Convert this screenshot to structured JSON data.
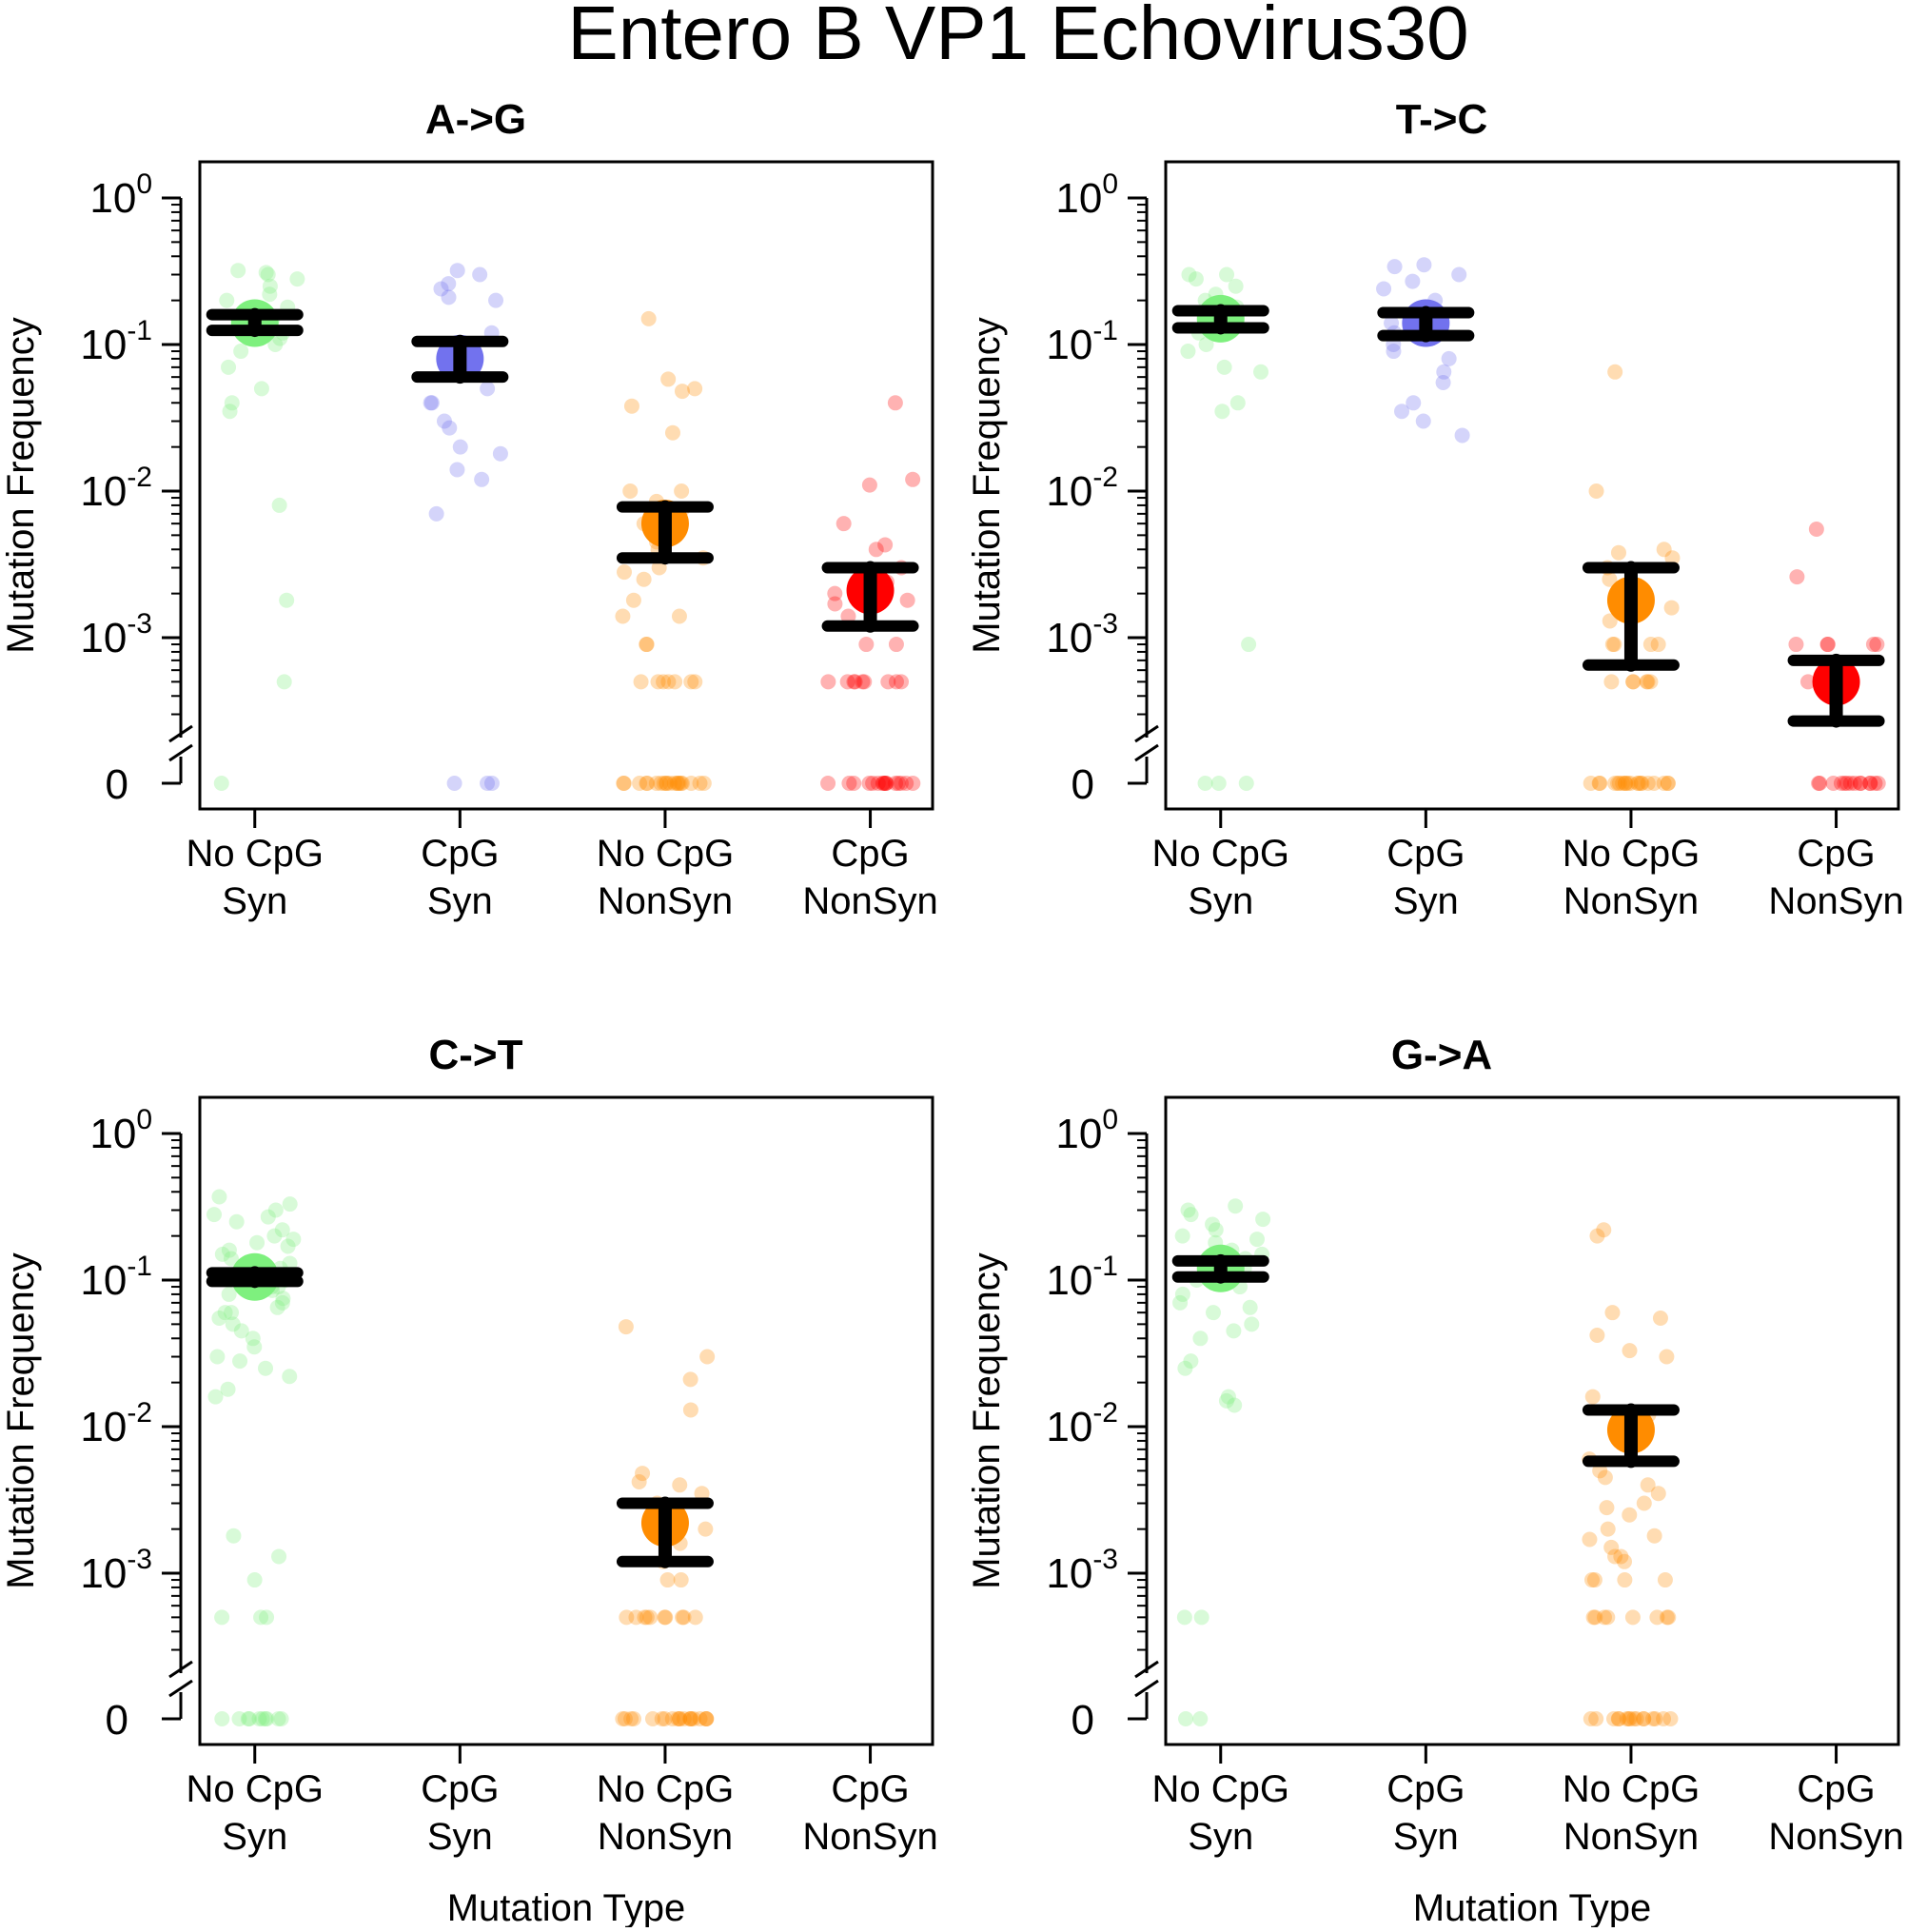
{
  "title": "Entero B VP1 Echovirus30",
  "chart_data": {
    "type": "scatter",
    "y_scale": "log10 with zero break",
    "ylim": [
      0.0003,
      1
    ],
    "y_ticks": [
      {
        "base": "10",
        "exp": "0",
        "value": 1
      },
      {
        "base": "10",
        "exp": "-1",
        "value": 0.1
      },
      {
        "base": "10",
        "exp": "-2",
        "value": 0.01
      },
      {
        "base": "10",
        "exp": "-3",
        "value": 0.001
      }
    ],
    "zero_label": "0",
    "categories": [
      {
        "line1": "No CpG",
        "line2": "Syn"
      },
      {
        "line1": "CpG",
        "line2": "Syn"
      },
      {
        "line1": "No CpG",
        "line2": "NonSyn"
      },
      {
        "line1": "CpG",
        "line2": "NonSyn"
      }
    ],
    "colors": {
      "No CpG Syn": "#7ef07e",
      "CpG Syn": "#7272ee",
      "No CpG NonSyn": "#ff8c00",
      "CpG NonSyn": "#ff0000"
    },
    "panels": [
      {
        "title": "A->G",
        "ylabel": "Mutation Frequency",
        "xlabel": "",
        "series": [
          {
            "category": "No CpG Syn",
            "mean": 0.14,
            "ci": [
              0.125,
              0.16
            ],
            "points": [
              0.3,
              0.32,
              0.31,
              0.28,
              0.25,
              0.22,
              0.2,
              0.18,
              0.15,
              0.12,
              0.1,
              0.09,
              0.11,
              0.07,
              0.05,
              0.04,
              0.035,
              0.008,
              0.0018,
              0.0005,
              0
            ]
          },
          {
            "category": "CpG Syn",
            "mean": 0.08,
            "ci": [
              0.06,
              0.105
            ],
            "points": [
              0.32,
              0.3,
              0.26,
              0.24,
              0.21,
              0.2,
              0.12,
              0.09,
              0.07,
              0.05,
              0.04,
              0.04,
              0.03,
              0.027,
              0.02,
              0.018,
              0.014,
              0.012,
              0.007,
              0,
              0,
              0
            ]
          },
          {
            "category": "No CpG NonSyn",
            "mean": 0.006,
            "ci": [
              0.0035,
              0.0078
            ],
            "points": [
              0.15,
              0.058,
              0.05,
              0.048,
              0.038,
              0.025,
              0.01,
              0.01,
              0.0085,
              0.0075,
              0.006,
              0.005,
              0.0045,
              0.004,
              0.0035,
              0.003,
              0.0028,
              0.0025,
              0.0018,
              0.0014,
              0.0014,
              0.0009,
              0.0009,
              0.0005,
              0.0005,
              0.0005,
              0.0005,
              0.0005,
              0.0005,
              0.0005,
              0,
              0,
              0,
              0,
              0,
              0,
              0,
              0,
              0,
              0,
              0,
              0,
              0,
              0,
              0,
              0,
              0,
              0,
              0,
              0
            ]
          },
          {
            "category": "CpG NonSyn",
            "mean": 0.0021,
            "ci": [
              0.0012,
              0.003
            ],
            "points": [
              0.04,
              0.012,
              0.011,
              0.006,
              0.004,
              0.0043,
              0.003,
              0.0025,
              0.0024,
              0.002,
              0.0018,
              0.0017,
              0.0014,
              0.0009,
              0.0009,
              0.0005,
              0.0005,
              0.0005,
              0.0005,
              0.0005,
              0.0005,
              0.0005,
              0.0005,
              0.0005,
              0,
              0,
              0,
              0,
              0,
              0,
              0,
              0,
              0,
              0,
              0,
              0,
              0,
              0,
              0,
              0
            ]
          }
        ]
      },
      {
        "title": "T->C",
        "ylabel": "Mutation Frequency",
        "xlabel": "",
        "series": [
          {
            "category": "No CpG Syn",
            "mean": 0.15,
            "ci": [
              0.13,
              0.17
            ],
            "points": [
              0.3,
              0.3,
              0.28,
              0.25,
              0.22,
              0.2,
              0.18,
              0.16,
              0.14,
              0.12,
              0.1,
              0.09,
              0.07,
              0.065,
              0.04,
              0.035,
              0.0009,
              0,
              0,
              0
            ]
          },
          {
            "category": "CpG Syn",
            "mean": 0.14,
            "ci": [
              0.115,
              0.165
            ],
            "points": [
              0.35,
              0.34,
              0.3,
              0.27,
              0.24,
              0.2,
              0.17,
              0.14,
              0.12,
              0.1,
              0.09,
              0.08,
              0.065,
              0.055,
              0.04,
              0.035,
              0.03,
              0.024
            ]
          },
          {
            "category": "No CpG NonSyn",
            "mean": 0.0018,
            "ci": [
              0.00065,
              0.003
            ],
            "points": [
              0.065,
              0.01,
              0.004,
              0.0038,
              0.0035,
              0.003,
              0.0025,
              0.002,
              0.0016,
              0.0013,
              0.0009,
              0.0009,
              0.0009,
              0.0009,
              0.0005,
              0.0005,
              0.0005,
              0.0005,
              0.0005,
              0.0005,
              0,
              0,
              0,
              0,
              0,
              0,
              0,
              0,
              0,
              0,
              0,
              0,
              0,
              0,
              0,
              0,
              0,
              0,
              0,
              0
            ]
          },
          {
            "category": "CpG NonSyn",
            "mean": 0.0005,
            "ci": [
              0.00027,
              0.0007
            ],
            "points": [
              0.0055,
              0.0026,
              0.0009,
              0.0009,
              0.0009,
              0.0009,
              0.0009,
              0.0005,
              0.0005,
              0.0005,
              0,
              0,
              0,
              0,
              0,
              0,
              0,
              0,
              0,
              0,
              0,
              0,
              0,
              0
            ]
          }
        ]
      },
      {
        "title": "C->T",
        "ylabel": "Mutation Frequency",
        "xlabel": "Mutation Type",
        "series": [
          {
            "category": "No CpG Syn",
            "mean": 0.105,
            "ci": [
              0.098,
              0.112
            ],
            "points": [
              0.37,
              0.33,
              0.3,
              0.28,
              0.27,
              0.25,
              0.22,
              0.2,
              0.19,
              0.18,
              0.17,
              0.16,
              0.15,
              0.14,
              0.13,
              0.12,
              0.11,
              0.1,
              0.1,
              0.09,
              0.09,
              0.085,
              0.08,
              0.075,
              0.07,
              0.065,
              0.06,
              0.06,
              0.055,
              0.05,
              0.045,
              0.04,
              0.035,
              0.03,
              0.028,
              0.025,
              0.022,
              0.018,
              0.016,
              0.0018,
              0.0013,
              0.0009,
              0.0005,
              0.0005,
              0.0005,
              0,
              0,
              0,
              0,
              0,
              0,
              0,
              0,
              0,
              0
            ]
          },
          {
            "category": "No CpG NonSyn",
            "mean": 0.0022,
            "ci": [
              0.0012,
              0.003
            ],
            "points": [
              0.048,
              0.03,
              0.021,
              0.013,
              0.0048,
              0.0042,
              0.004,
              0.0035,
              0.003,
              0.0025,
              0.002,
              0.0016,
              0.0012,
              0.0009,
              0.0009,
              0.0005,
              0.0005,
              0.0005,
              0.0005,
              0.0005,
              0.0005,
              0.0005,
              0.0005,
              0.0005,
              0.0005,
              0,
              0,
              0,
              0,
              0,
              0,
              0,
              0,
              0,
              0,
              0,
              0,
              0,
              0,
              0,
              0,
              0,
              0,
              0,
              0
            ]
          }
        ]
      },
      {
        "title": "G->A",
        "ylabel": "Mutation Frequency",
        "xlabel": "Mutation Type",
        "series": [
          {
            "category": "No CpG Syn",
            "mean": 0.12,
            "ci": [
              0.105,
              0.135
            ],
            "points": [
              0.32,
              0.3,
              0.28,
              0.26,
              0.24,
              0.22,
              0.2,
              0.19,
              0.18,
              0.16,
              0.15,
              0.14,
              0.12,
              0.11,
              0.1,
              0.09,
              0.08,
              0.07,
              0.065,
              0.06,
              0.05,
              0.045,
              0.04,
              0.028,
              0.025,
              0.016,
              0.015,
              0.014,
              0.0005,
              0.0005,
              0,
              0
            ]
          },
          {
            "category": "No CpG NonSyn",
            "mean": 0.0095,
            "ci": [
              0.0058,
              0.013
            ],
            "points": [
              0.22,
              0.2,
              0.06,
              0.055,
              0.042,
              0.033,
              0.03,
              0.016,
              0.012,
              0.01,
              0.008,
              0.006,
              0.005,
              0.0045,
              0.004,
              0.0035,
              0.003,
              0.0028,
              0.0025,
              0.002,
              0.0018,
              0.0017,
              0.0015,
              0.0013,
              0.0013,
              0.0012,
              0.0009,
              0.0009,
              0.0009,
              0.0009,
              0.0005,
              0.0005,
              0.0005,
              0.0005,
              0.0005,
              0.0005,
              0.0005,
              0.0005,
              0,
              0,
              0,
              0,
              0,
              0,
              0,
              0,
              0,
              0,
              0,
              0,
              0,
              0,
              0,
              0
            ]
          }
        ]
      }
    ]
  }
}
